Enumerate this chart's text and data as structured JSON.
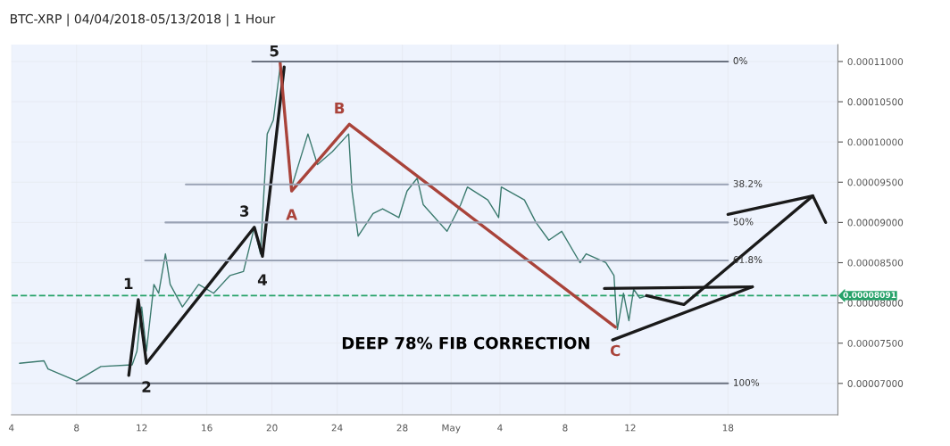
{
  "chart_data": {
    "type": "line",
    "title": "BTC-XRP | 04/04/2018-05/13/2018 | 1 Hour",
    "xlim": [
      "2018-04-04",
      "2018-05-24T18:00"
    ],
    "ylim": [
      6.61e-05,
      0.0001121
    ],
    "xticks": [
      {
        "value": "2018-04-04",
        "label": "4"
      },
      {
        "value": "2018-04-08",
        "label": "8"
      },
      {
        "value": "2018-04-12",
        "label": "12"
      },
      {
        "value": "2018-04-16",
        "label": "16"
      },
      {
        "value": "2018-04-20",
        "label": "20"
      },
      {
        "value": "2018-04-24",
        "label": "24"
      },
      {
        "value": "2018-04-28",
        "label": "28"
      },
      {
        "value": "2018-05-01",
        "label": "May"
      },
      {
        "value": "2018-05-04",
        "label": "4"
      },
      {
        "value": "2018-05-08",
        "label": "8"
      },
      {
        "value": "2018-05-12",
        "label": "12"
      },
      {
        "value": "2018-05-18",
        "label": "18"
      }
    ],
    "yticks": [
      {
        "value": 7e-05,
        "label": "0.00007000"
      },
      {
        "value": 7.5e-05,
        "label": "0.00007500"
      },
      {
        "value": 8e-05,
        "label": "0.00008000"
      },
      {
        "value": 8.5e-05,
        "label": "0.00008500"
      },
      {
        "value": 9e-05,
        "label": "0.00009000"
      },
      {
        "value": 9.5e-05,
        "label": "0.00009500"
      },
      {
        "value": 0.0001,
        "label": "0.00010000"
      },
      {
        "value": 0.000105,
        "label": "0.00010500"
      },
      {
        "value": 0.00011,
        "label": "0.00011000"
      }
    ],
    "grid": true,
    "line_style": "solid",
    "marker": "none",
    "series": [
      {
        "color": "#3b7a6e",
        "x": [
          "2018-04-04T12:00",
          "2018-04-06",
          "2018-04-06T06:00",
          "2018-04-08",
          "2018-04-09T12:00",
          "2018-04-11T10:00",
          "2018-04-11T17:00",
          "2018-04-12",
          "2018-04-12T07:00",
          "2018-04-12T18:00",
          "2018-04-13T01:00",
          "2018-04-13T11:00",
          "2018-04-13T18:00",
          "2018-04-14T12:00",
          "2018-04-15T12:00",
          "2018-04-16T10:00",
          "2018-04-17T10:00",
          "2018-04-18T06:00",
          "2018-04-18T22:00",
          "2018-04-19T07:00",
          "2018-04-19T17:00",
          "2018-04-20T02:00",
          "2018-04-20T12:00",
          "2018-04-20T18:00",
          "2018-04-21T05:00",
          "2018-04-21T17:00",
          "2018-04-22T05:00",
          "2018-04-22T19:00",
          "2018-04-23T17:00",
          "2018-04-24T17:00",
          "2018-04-24T22:00",
          "2018-04-25T07:00",
          "2018-04-26T05:00",
          "2018-04-26T19:00",
          "2018-04-27T19:00",
          "2018-04-28T07:00",
          "2018-04-28T22:00",
          "2018-04-29T07:00",
          "2018-04-30T18:00",
          "2018-05-01T14:00",
          "2018-05-02",
          "2018-05-03T06:00",
          "2018-05-03T22:00",
          "2018-05-04T02:00",
          "2018-05-05T12:00",
          "2018-05-06T05:00",
          "2018-05-07",
          "2018-05-07T19:00",
          "2018-05-08T22:00",
          "2018-05-09T07:00",
          "2018-05-10T12:00",
          "2018-05-11",
          "2018-05-11T05:00",
          "2018-05-11T14:00",
          "2018-05-11T22:00",
          "2018-05-12T05:00",
          "2018-05-12T14:00",
          "2018-05-13"
        ],
        "values": [
          7.25e-05,
          7.28e-05,
          7.18e-05,
          7.03e-05,
          7.21e-05,
          7.23e-05,
          7.4e-05,
          7.95e-05,
          7.4e-05,
          8.23e-05,
          8.12e-05,
          8.61e-05,
          8.23e-05,
          7.95e-05,
          8.23e-05,
          8.12e-05,
          8.34e-05,
          8.39e-05,
          8.94e-05,
          8.61e-05,
          0.000101,
          0.0001027,
          0.0001093,
          0.0001044,
          9.44e-05,
          9.77e-05,
          0.000101,
          9.72e-05,
          9.88e-05,
          0.000101,
          9.39e-05,
          8.83e-05,
          9.11e-05,
          9.17e-05,
          9.06e-05,
          9.39e-05,
          9.55e-05,
          9.22e-05,
          8.89e-05,
          9.22e-05,
          9.44e-05,
          9.28e-05,
          9.06e-05,
          9.44e-05,
          9.28e-05,
          9e-05,
          8.78e-05,
          8.89e-05,
          8.5e-05,
          8.61e-05,
          8.5e-05,
          8.34e-05,
          7.67e-05,
          8.12e-05,
          7.78e-05,
          8.17e-05,
          8.06e-05,
          8.09e-05
        ]
      },
      {
        "color": "#1a1a1a",
        "x": [
          "2018-04-11T05:00",
          "2018-04-11T19:00",
          "2018-04-12T07:00",
          "2018-04-18T22:00",
          "2018-04-19T10:00",
          "2018-04-20T18:00"
        ],
        "values": [
          7.1e-05,
          8.04e-05,
          7.25e-05,
          8.94e-05,
          8.58e-05,
          0.0001093
        ]
      },
      {
        "color": "#a9433a",
        "x": [
          "2018-04-20T12:00",
          "2018-04-21T05:00",
          "2018-04-24T18:00",
          "2018-05-11T02:00"
        ],
        "values": [
          0.0001099,
          9.39e-05,
          0.0001022,
          7.7e-05
        ]
      },
      {
        "color": "#1a1a1a",
        "x": [
          "2018-05-10T10:00",
          "2018-05-19T12:00"
        ],
        "values": [
          8.18e-05,
          8.2e-05
        ]
      },
      {
        "color": "#1a1a1a",
        "x": [
          "2018-05-10T22:00",
          "2018-05-19T12:00"
        ],
        "values": [
          7.54e-05,
          8.2e-05
        ]
      },
      {
        "color": "#1a1a1a",
        "x": [
          "2018-05-13",
          "2018-05-15T07:00",
          "2018-05-23T05:00"
        ],
        "values": [
          8.09e-05,
          7.98e-05,
          9.33e-05
        ]
      },
      {
        "color": "#1a1a1a",
        "x": [
          "2018-05-18",
          "2018-05-23T05:00",
          "2018-05-24"
        ],
        "values": [
          9.1e-05,
          9.33e-05,
          9e-05
        ]
      },
      {
        "color": "#6b7280",
        "x": [
          "2018-04-18T19:00",
          "2018-05-18"
        ],
        "values": [
          0.00011,
          0.00011
        ]
      },
      {
        "color": "#9aa3b5",
        "x": [
          "2018-04-14T17:00",
          "2018-05-18"
        ],
        "values": [
          9.472e-05,
          9.472e-05
        ]
      },
      {
        "color": "#9aa3b5",
        "x": [
          "2018-04-13T11:00",
          "2018-05-18"
        ],
        "values": [
          9e-05,
          9e-05
        ]
      },
      {
        "color": "#9aa3b5",
        "x": [
          "2018-04-12T05:00",
          "2018-05-18"
        ],
        "values": [
          8.528e-05,
          8.528e-05
        ]
      },
      {
        "color": "#6b7280",
        "x": [
          "2018-04-08",
          "2018-05-18"
        ],
        "values": [
          7e-05,
          7e-05
        ]
      }
    ],
    "ref_lines": [
      {
        "axis": "y",
        "value": 8.091e-05,
        "label": "0.00008091",
        "color": "#26a269",
        "line_style": "dashed"
      }
    ],
    "annotations": [
      {
        "text": "0%",
        "x": "2018-05-18",
        "y": 0.00011
      },
      {
        "text": "38.2%",
        "x": "2018-05-18",
        "y": 9.472e-05
      },
      {
        "text": "50%",
        "x": "2018-05-18",
        "y": 9e-05
      },
      {
        "text": "61.8%",
        "x": "2018-05-18",
        "y": 8.528e-05
      },
      {
        "text": "100%",
        "x": "2018-05-18",
        "y": 7e-05
      },
      {
        "text": "1",
        "x": "2018-04-11T19:00",
        "y": 8.04e-05
      },
      {
        "text": "2",
        "x": "2018-04-12T07:00",
        "y": 7.25e-05
      },
      {
        "text": "3",
        "x": "2018-04-18T22:00",
        "y": 8.94e-05
      },
      {
        "text": "4",
        "x": "2018-04-19T10:00",
        "y": 8.58e-05
      },
      {
        "text": "5",
        "x": "2018-04-20T18:00",
        "y": 0.0001093
      },
      {
        "text": "A",
        "x": "2018-04-21T05:00",
        "y": 9.39e-05
      },
      {
        "text": "B",
        "x": "2018-04-24T18:00",
        "y": 0.0001022
      },
      {
        "text": "C",
        "x": "2018-05-11T02:00",
        "y": 7.7e-05
      },
      "DEEP 78% FIB CORRECTION"
    ]
  }
}
